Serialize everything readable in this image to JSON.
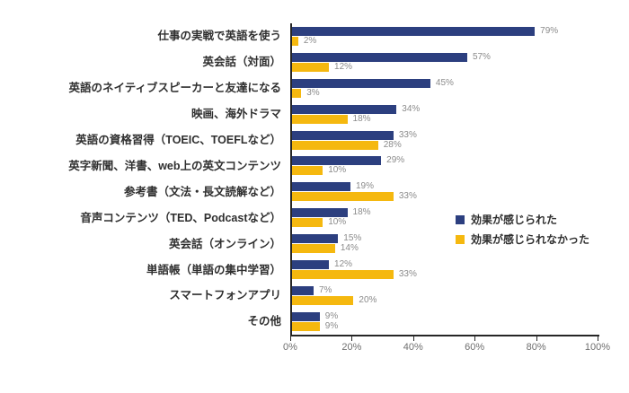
{
  "chart_data": {
    "type": "bar",
    "orientation": "horizontal",
    "title": "",
    "xlabel": "",
    "ylabel": "",
    "xlim": [
      0,
      100
    ],
    "grid": false,
    "legend_position": "right",
    "value_labels": true,
    "value_suffix": "%",
    "categories": [
      "仕事の実戦で英語を使う",
      "英会話（対面）",
      "英語のネイティブスピーカーと友達になる",
      "映画、海外ドラマ",
      "英語の資格習得（TOEIC、TOEFLなど）",
      "英字新聞、洋書、web上の英文コンテンツ",
      "参考書（文法・長文読解など）",
      "音声コンテンツ（TED、Podcastなど）",
      "英会話（オンライン）",
      "単語帳（単語の集中学習）",
      "スマートフォンアプリ",
      "その他"
    ],
    "series": [
      {
        "name": "効果が感じられた",
        "color": "#2c3f7f",
        "values": [
          79,
          57,
          45,
          34,
          33,
          29,
          19,
          18,
          15,
          12,
          7,
          9
        ]
      },
      {
        "name": "効果が感じられなかった",
        "color": "#f5b80f",
        "values": [
          2,
          12,
          3,
          18,
          28,
          10,
          33,
          10,
          14,
          33,
          20,
          9
        ]
      }
    ],
    "x_ticks": [
      {
        "value": 0,
        "label": "0%"
      },
      {
        "value": 20,
        "label": "20%"
      },
      {
        "value": 40,
        "label": "40%"
      },
      {
        "value": 60,
        "label": "60%"
      },
      {
        "value": 80,
        "label": "80%"
      },
      {
        "value": 100,
        "label": "100%"
      }
    ]
  },
  "styles": {
    "background": "#ffffff",
    "axis_color": "#262626",
    "value_label_color": "#8b8b8b",
    "tick_label_color": "#6f6f6f",
    "category_label_color": "#2f2f2f"
  }
}
